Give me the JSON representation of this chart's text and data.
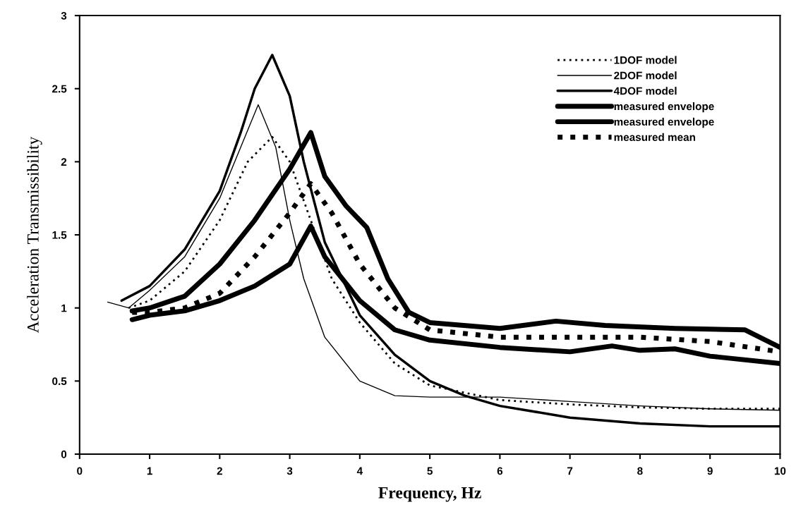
{
  "chart_data": {
    "type": "line",
    "xlabel": "Frequency, Hz",
    "ylabel": "Acceleration Transmissibility",
    "xlim": [
      0,
      10
    ],
    "ylim": [
      0,
      3
    ],
    "xticks": [
      0,
      1,
      2,
      3,
      4,
      5,
      6,
      7,
      8,
      9,
      10
    ],
    "yticks": [
      0,
      0.5,
      1,
      1.5,
      2,
      2.5,
      3
    ],
    "grid": false,
    "legend": "top right",
    "marker": "none",
    "series": [
      {
        "name": "1DOF model",
        "color": "#000000",
        "line_style": "dotted",
        "x": [
          0.7,
          1.0,
          1.5,
          2.0,
          2.4,
          2.75,
          3.0,
          3.3,
          3.6,
          4.0,
          4.5,
          5.0,
          6.0,
          7.0,
          8.0,
          9.0,
          10.0
        ],
        "values": [
          1.0,
          1.05,
          1.25,
          1.6,
          2.0,
          2.17,
          2.0,
          1.6,
          1.2,
          0.9,
          0.62,
          0.47,
          0.37,
          0.34,
          0.32,
          0.31,
          0.31
        ]
      },
      {
        "name": "2DOF model",
        "color": "#000000",
        "line_style": "solid",
        "x": [
          0.4,
          0.7,
          1.0,
          1.5,
          2.0,
          2.3,
          2.55,
          2.8,
          3.0,
          3.2,
          3.5,
          4.0,
          4.5,
          5.0,
          6.0,
          7.0,
          8.0,
          9.0,
          10.0
        ],
        "values": [
          1.04,
          1.0,
          1.12,
          1.35,
          1.75,
          2.1,
          2.39,
          2.1,
          1.6,
          1.2,
          0.8,
          0.5,
          0.4,
          0.39,
          0.39,
          0.36,
          0.33,
          0.31,
          0.3
        ]
      },
      {
        "name": "4DOF model",
        "color": "#000000",
        "line_style": "solid",
        "x": [
          0.6,
          1.0,
          1.5,
          2.0,
          2.3,
          2.5,
          2.75,
          3.0,
          3.2,
          3.5,
          4.0,
          4.5,
          5.0,
          5.5,
          6.0,
          7.0,
          8.0,
          9.0,
          10.0
        ],
        "values": [
          1.05,
          1.15,
          1.4,
          1.8,
          2.2,
          2.5,
          2.73,
          2.45,
          2.0,
          1.45,
          0.95,
          0.68,
          0.5,
          0.4,
          0.33,
          0.25,
          0.21,
          0.19,
          0.19
        ]
      },
      {
        "name": "measured envelope",
        "color": "#000000",
        "line_style": "solid",
        "x": [
          0.75,
          1.0,
          1.5,
          2.0,
          2.5,
          3.0,
          3.3,
          3.5,
          3.8,
          4.1,
          4.4,
          4.7,
          5.0,
          6.0,
          6.8,
          7.5,
          8.5,
          9.5,
          10.0
        ],
        "values": [
          0.98,
          1.0,
          1.08,
          1.3,
          1.6,
          1.95,
          2.2,
          1.9,
          1.7,
          1.55,
          1.2,
          0.97,
          0.9,
          0.86,
          0.91,
          0.88,
          0.86,
          0.85,
          0.73
        ]
      },
      {
        "name": "measured envelope",
        "color": "#000000",
        "line_style": "solid",
        "x": [
          0.75,
          1.0,
          1.5,
          2.0,
          2.5,
          3.0,
          3.3,
          3.5,
          4.0,
          4.5,
          5.0,
          6.0,
          7.0,
          7.6,
          8.0,
          8.5,
          9.0,
          10.0
        ],
        "values": [
          0.92,
          0.95,
          0.98,
          1.05,
          1.15,
          1.3,
          1.56,
          1.35,
          1.05,
          0.85,
          0.78,
          0.73,
          0.7,
          0.74,
          0.71,
          0.72,
          0.67,
          0.62
        ]
      },
      {
        "name": "measured mean",
        "color": "#000000",
        "line_style": "dashed",
        "x": [
          0.75,
          1.0,
          1.5,
          2.0,
          2.5,
          3.0,
          3.3,
          3.6,
          4.0,
          4.5,
          5.0,
          6.0,
          7.0,
          8.0,
          9.0,
          10.0
        ],
        "values": [
          0.97,
          0.97,
          1.0,
          1.1,
          1.35,
          1.65,
          1.85,
          1.65,
          1.3,
          1.0,
          0.85,
          0.8,
          0.8,
          0.8,
          0.77,
          0.7
        ]
      }
    ]
  }
}
